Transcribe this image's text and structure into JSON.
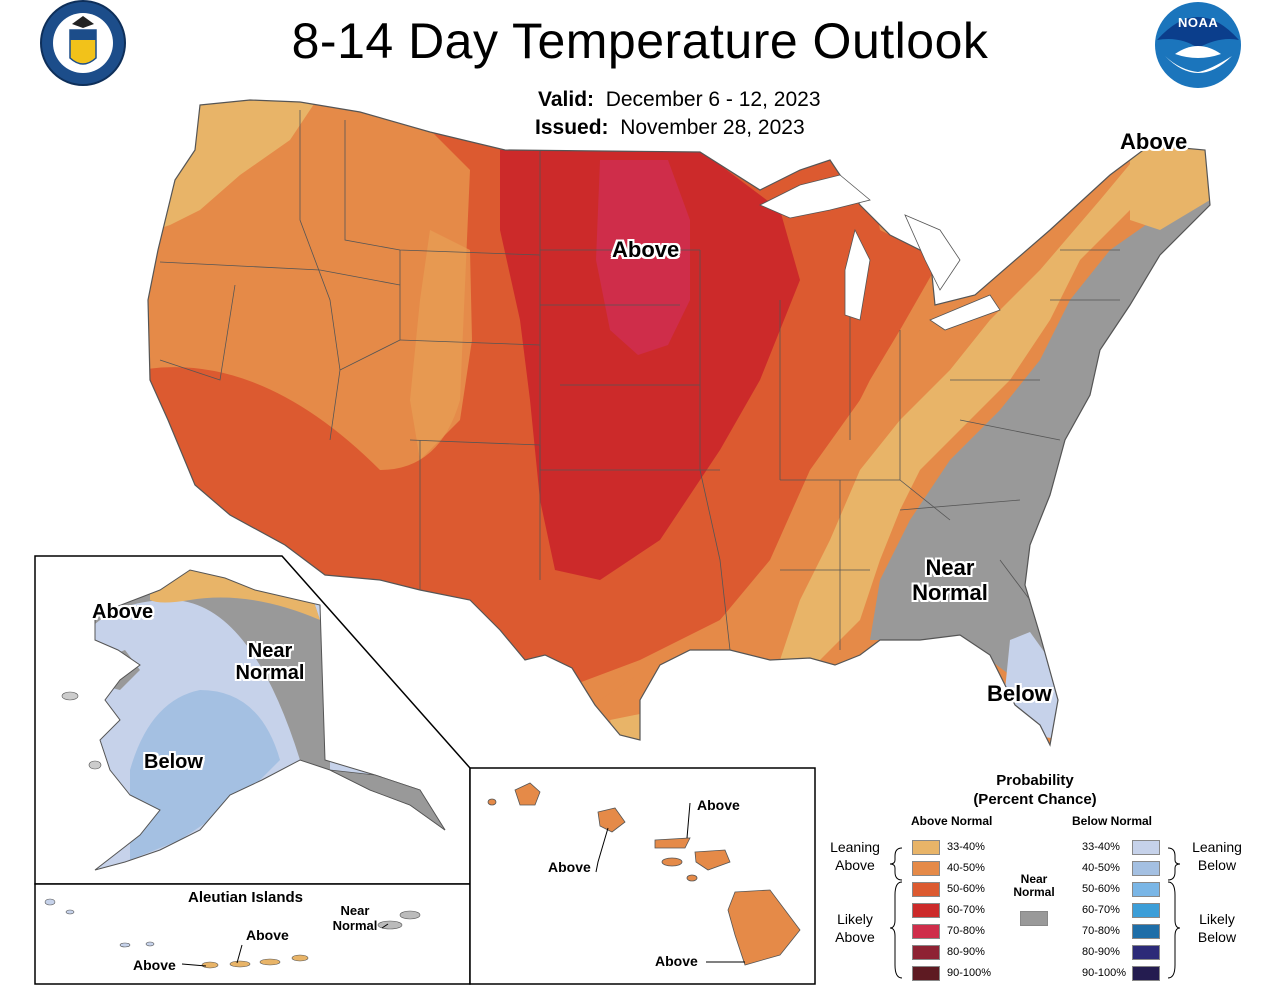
{
  "title": "8-14 Day Temperature Outlook",
  "valid_label": "Valid:",
  "valid_value": "December 6 - 12, 2023",
  "issued_label": "Issued:",
  "issued_value": "November 28, 2023",
  "noaa_logo_text": "NOAA",
  "conus_labels": {
    "above_main": "Above",
    "above_ne": "Above",
    "near_normal_line1": "Near",
    "near_normal_line2": "Normal",
    "below": "Below"
  },
  "alaska_labels": {
    "above": "Above",
    "near_line1": "Near",
    "near_line2": "Normal",
    "below": "Below"
  },
  "aleutian": {
    "title": "Aleutian Islands",
    "above_1": "Above",
    "above_2": "Above",
    "near_line1": "Near",
    "near_line2": "Normal"
  },
  "hawaii_labels": {
    "above_top": "Above",
    "above_left": "Above",
    "above_bottom": "Above"
  },
  "legend": {
    "title_line1": "Probability",
    "title_line2": "(Percent Chance)",
    "above_header": "Above Normal",
    "below_header": "Below Normal",
    "near_header_line1": "Near",
    "near_header_line2": "Normal",
    "leaning_above_1": "Leaning",
    "leaning_above_2": "Above",
    "likely_above_1": "Likely",
    "likely_above_2": "Above",
    "leaning_below_1": "Leaning",
    "leaning_below_2": "Below",
    "likely_below_1": "Likely",
    "likely_below_2": "Below",
    "above_items": [
      {
        "label": "33-40%",
        "color": "#e8b468"
      },
      {
        "label": "40-50%",
        "color": "#e58a48"
      },
      {
        "label": "50-60%",
        "color": "#dc5a30"
      },
      {
        "label": "60-70%",
        "color": "#cc2a2a"
      },
      {
        "label": "70-80%",
        "color": "#cf2d4a"
      },
      {
        "label": "80-90%",
        "color": "#8e2233"
      },
      {
        "label": "90-100%",
        "color": "#5e1a22"
      }
    ],
    "below_items": [
      {
        "label": "33-40%",
        "color": "#c6d2ea"
      },
      {
        "label": "40-50%",
        "color": "#a4c0e2"
      },
      {
        "label": "50-60%",
        "color": "#7ab6e6"
      },
      {
        "label": "60-70%",
        "color": "#3c9ed8"
      },
      {
        "label": "70-80%",
        "color": "#1e6ea8"
      },
      {
        "label": "80-90%",
        "color": "#2c2a78"
      },
      {
        "label": "90-100%",
        "color": "#241c50"
      }
    ],
    "near_color": "#999999"
  }
}
